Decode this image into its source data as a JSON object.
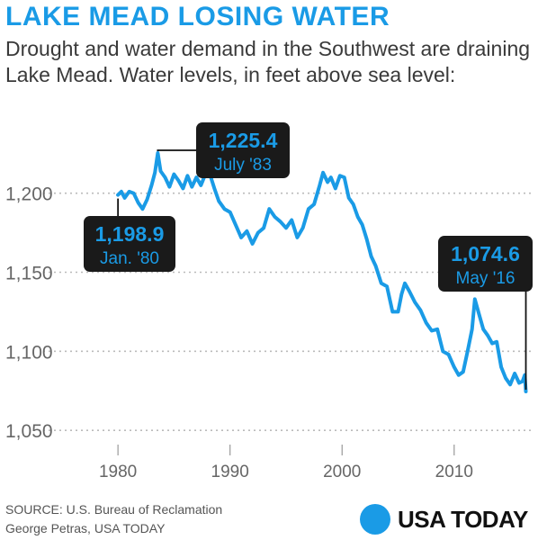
{
  "header": {
    "title": "LAKE MEAD LOSING WATER",
    "subtitle": "Drought and water demand in the Southwest are draining Lake Mead. Water levels, in feet above sea level:"
  },
  "footer": {
    "source": "SOURCE:  U.S. Bureau of Reclamation",
    "credit": "George Petras, USA TODAY",
    "logo": "USA TODAY"
  },
  "colors": {
    "accent": "#1a9be6",
    "callout_bg": "#1a1a1a",
    "grid": "#bbbbbb"
  },
  "chart_data": {
    "type": "line",
    "title": "LAKE MEAD LOSING WATER",
    "xlabel": "",
    "ylabel": "",
    "xlim": [
      1977.5,
      2016.6
    ],
    "ylim": [
      1045,
      1222
    ],
    "x_ticks": [
      "1980",
      "1990",
      "2000",
      "2010"
    ],
    "y_ticks": [
      "1,200",
      "1,150",
      "1,100",
      "1,050"
    ],
    "grid": true,
    "series": [
      {
        "name": "",
        "points": [
          [
            1980.0,
            1198.9
          ],
          [
            1980.3,
            1201
          ],
          [
            1980.6,
            1197
          ],
          [
            1981.0,
            1201
          ],
          [
            1981.4,
            1200
          ],
          [
            1981.8,
            1194
          ],
          [
            1982.2,
            1190
          ],
          [
            1982.6,
            1196
          ],
          [
            1983.0,
            1205
          ],
          [
            1983.3,
            1213
          ],
          [
            1983.55,
            1225.4
          ],
          [
            1983.8,
            1214
          ],
          [
            1984.2,
            1210
          ],
          [
            1984.6,
            1204
          ],
          [
            1985.0,
            1212
          ],
          [
            1985.4,
            1208
          ],
          [
            1985.8,
            1203
          ],
          [
            1986.2,
            1211
          ],
          [
            1986.6,
            1204
          ],
          [
            1987.0,
            1210
          ],
          [
            1987.4,
            1205
          ],
          [
            1987.8,
            1212
          ],
          [
            1988.2,
            1212
          ],
          [
            1988.6,
            1203
          ],
          [
            1989.0,
            1195
          ],
          [
            1989.5,
            1190
          ],
          [
            1990.0,
            1188
          ],
          [
            1990.5,
            1180
          ],
          [
            1991.0,
            1172
          ],
          [
            1991.5,
            1176
          ],
          [
            1992.0,
            1168
          ],
          [
            1992.5,
            1175
          ],
          [
            1993.0,
            1178
          ],
          [
            1993.5,
            1190
          ],
          [
            1994.0,
            1185
          ],
          [
            1994.5,
            1182
          ],
          [
            1995.0,
            1178
          ],
          [
            1995.5,
            1183
          ],
          [
            1996.0,
            1172
          ],
          [
            1996.5,
            1178
          ],
          [
            1997.0,
            1190
          ],
          [
            1997.5,
            1193
          ],
          [
            1998.0,
            1205
          ],
          [
            1998.3,
            1213
          ],
          [
            1998.7,
            1207
          ],
          [
            1999.0,
            1210
          ],
          [
            1999.4,
            1203
          ],
          [
            1999.8,
            1211
          ],
          [
            2000.2,
            1210
          ],
          [
            2000.6,
            1197
          ],
          [
            2001.0,
            1193
          ],
          [
            2001.4,
            1185
          ],
          [
            2001.8,
            1180
          ],
          [
            2002.2,
            1171
          ],
          [
            2002.6,
            1160
          ],
          [
            2003.0,
            1154
          ],
          [
            2003.5,
            1143
          ],
          [
            2004.0,
            1141
          ],
          [
            2004.5,
            1125
          ],
          [
            2005.0,
            1125
          ],
          [
            2005.3,
            1136
          ],
          [
            2005.6,
            1143
          ],
          [
            2006.0,
            1138
          ],
          [
            2006.5,
            1131
          ],
          [
            2007.0,
            1126
          ],
          [
            2007.5,
            1118
          ],
          [
            2008.0,
            1113
          ],
          [
            2008.5,
            1114
          ],
          [
            2009.0,
            1100
          ],
          [
            2009.5,
            1098
          ],
          [
            2010.0,
            1090
          ],
          [
            2010.4,
            1085
          ],
          [
            2010.8,
            1087
          ],
          [
            2011.2,
            1100
          ],
          [
            2011.6,
            1114
          ],
          [
            2011.85,
            1133
          ],
          [
            2012.2,
            1124
          ],
          [
            2012.6,
            1114
          ],
          [
            2013.0,
            1110
          ],
          [
            2013.4,
            1105
          ],
          [
            2013.8,
            1106
          ],
          [
            2014.2,
            1090
          ],
          [
            2014.6,
            1083
          ],
          [
            2015.0,
            1079
          ],
          [
            2015.4,
            1086
          ],
          [
            2015.8,
            1080
          ],
          [
            2016.1,
            1081
          ],
          [
            2016.3,
            1085
          ],
          [
            2016.4,
            1074.6
          ]
        ]
      }
    ],
    "annotations": [
      {
        "value": "1,198.9",
        "date": "Jan. '80",
        "x": 1980.0,
        "y": 1198.9
      },
      {
        "value": "1,225.4",
        "date": "July '83",
        "x": 1983.55,
        "y": 1225.4
      },
      {
        "value": "1,074.6",
        "date": "May '16",
        "x": 2016.4,
        "y": 1074.6
      }
    ]
  }
}
